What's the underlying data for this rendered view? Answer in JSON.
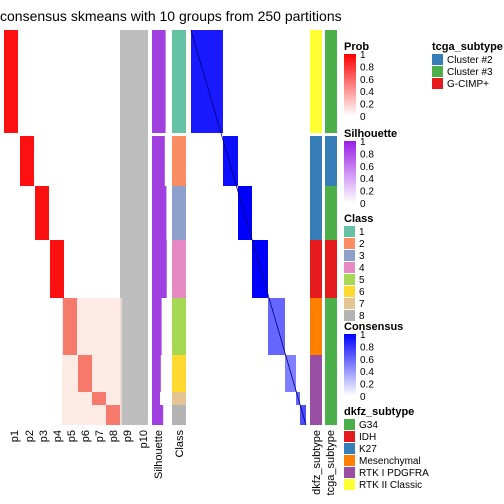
{
  "title": "consensus skmeans with 10 groups from 250 partitions",
  "column_labels": [
    "p1",
    "p2",
    "p3",
    "p4",
    "p5",
    "p6",
    "p7",
    "p8",
    "p9",
    "p10",
    "Silhouette",
    "Class",
    "dkfz_subtype",
    "tcga_subtype"
  ],
  "legends": {
    "prob": {
      "title": "Prob",
      "ticks": [
        "1",
        "0.8",
        "0.6",
        "0.4",
        "0.2",
        "0"
      ],
      "colors": [
        "#ff0000",
        "#ffffff"
      ]
    },
    "silhouette": {
      "title": "Silhouette",
      "ticks": [
        "1",
        "0.8",
        "0.6",
        "0.4",
        "0.2",
        "0"
      ],
      "colors": [
        "#9a1ee6",
        "#ffffff"
      ]
    },
    "class": {
      "title": "Class",
      "items": [
        {
          "label": "1",
          "color": "#66c2a5"
        },
        {
          "label": "2",
          "color": "#fc8d62"
        },
        {
          "label": "3",
          "color": "#8da0cb"
        },
        {
          "label": "4",
          "color": "#e78ac3"
        },
        {
          "label": "5",
          "color": "#a6d854"
        },
        {
          "label": "6",
          "color": "#ffd92f"
        },
        {
          "label": "7",
          "color": "#e5c494"
        },
        {
          "label": "8",
          "color": "#b3b3b3"
        }
      ]
    },
    "consensus": {
      "title": "Consensus",
      "ticks": [
        "1",
        "0.8",
        "0.6",
        "0.4",
        "0.2",
        "0"
      ],
      "colors": [
        "#0000ff",
        "#ffffff"
      ]
    },
    "dkfz_subtype": {
      "title": "dkfz_subtype",
      "items": [
        {
          "label": "G34",
          "color": "#4daf4a"
        },
        {
          "label": "IDH",
          "color": "#e41a1c"
        },
        {
          "label": "K27",
          "color": "#377eb8"
        },
        {
          "label": "Mesenchymal",
          "color": "#ff7f00"
        },
        {
          "label": "RTK I PDGFRA",
          "color": "#984ea3"
        },
        {
          "label": "RTK II Classic",
          "color": "#ffff33"
        }
      ]
    },
    "tcga_subtype": {
      "title": "tcga_subtype",
      "items": [
        {
          "label": "Cluster #2",
          "color": "#377eb8"
        },
        {
          "label": "Cluster #3",
          "color": "#4daf4a"
        },
        {
          "label": "G-CIMP+",
          "color": "#e41a1c"
        }
      ]
    }
  },
  "chart_data": {
    "type": "heatmap",
    "title": "consensus skmeans with 10 groups from 250 partitions",
    "n_partitions": 250,
    "n_groups": 10,
    "groups": [
      {
        "class": "1",
        "prob_column": "p1",
        "silhouette": 0.85,
        "dkfz": "RTK II Classic",
        "tcga": "Cluster #3"
      },
      {
        "class": "2",
        "prob_column": "p2",
        "silhouette": 0.8,
        "dkfz": "K27",
        "tcga": "Cluster #3"
      },
      {
        "class": "3",
        "prob_column": "p3",
        "silhouette": 0.9,
        "dkfz": "K27",
        "tcga": "Cluster #3"
      },
      {
        "class": "4",
        "prob_column": "p4",
        "silhouette": 0.92,
        "dkfz": "IDH",
        "tcga": "G-CIMP+"
      },
      {
        "class": "5",
        "prob_column": "p5",
        "silhouette": 0.6,
        "dkfz": "Mesenchymal",
        "tcga": "Cluster #3"
      },
      {
        "class": "6",
        "prob_column": "p6",
        "silhouette": 0.55,
        "dkfz": "RTK I PDGFRA",
        "tcga": "Cluster #3"
      },
      {
        "class": "7",
        "prob_column": "p7",
        "silhouette": 0.5,
        "dkfz": "RTK I PDGFRA",
        "tcga": "Cluster #3"
      },
      {
        "class": "8",
        "prob_column": "p8",
        "silhouette": 0.7,
        "dkfz": "RTK I PDGFRA",
        "tcga": "Cluster #3"
      }
    ]
  }
}
